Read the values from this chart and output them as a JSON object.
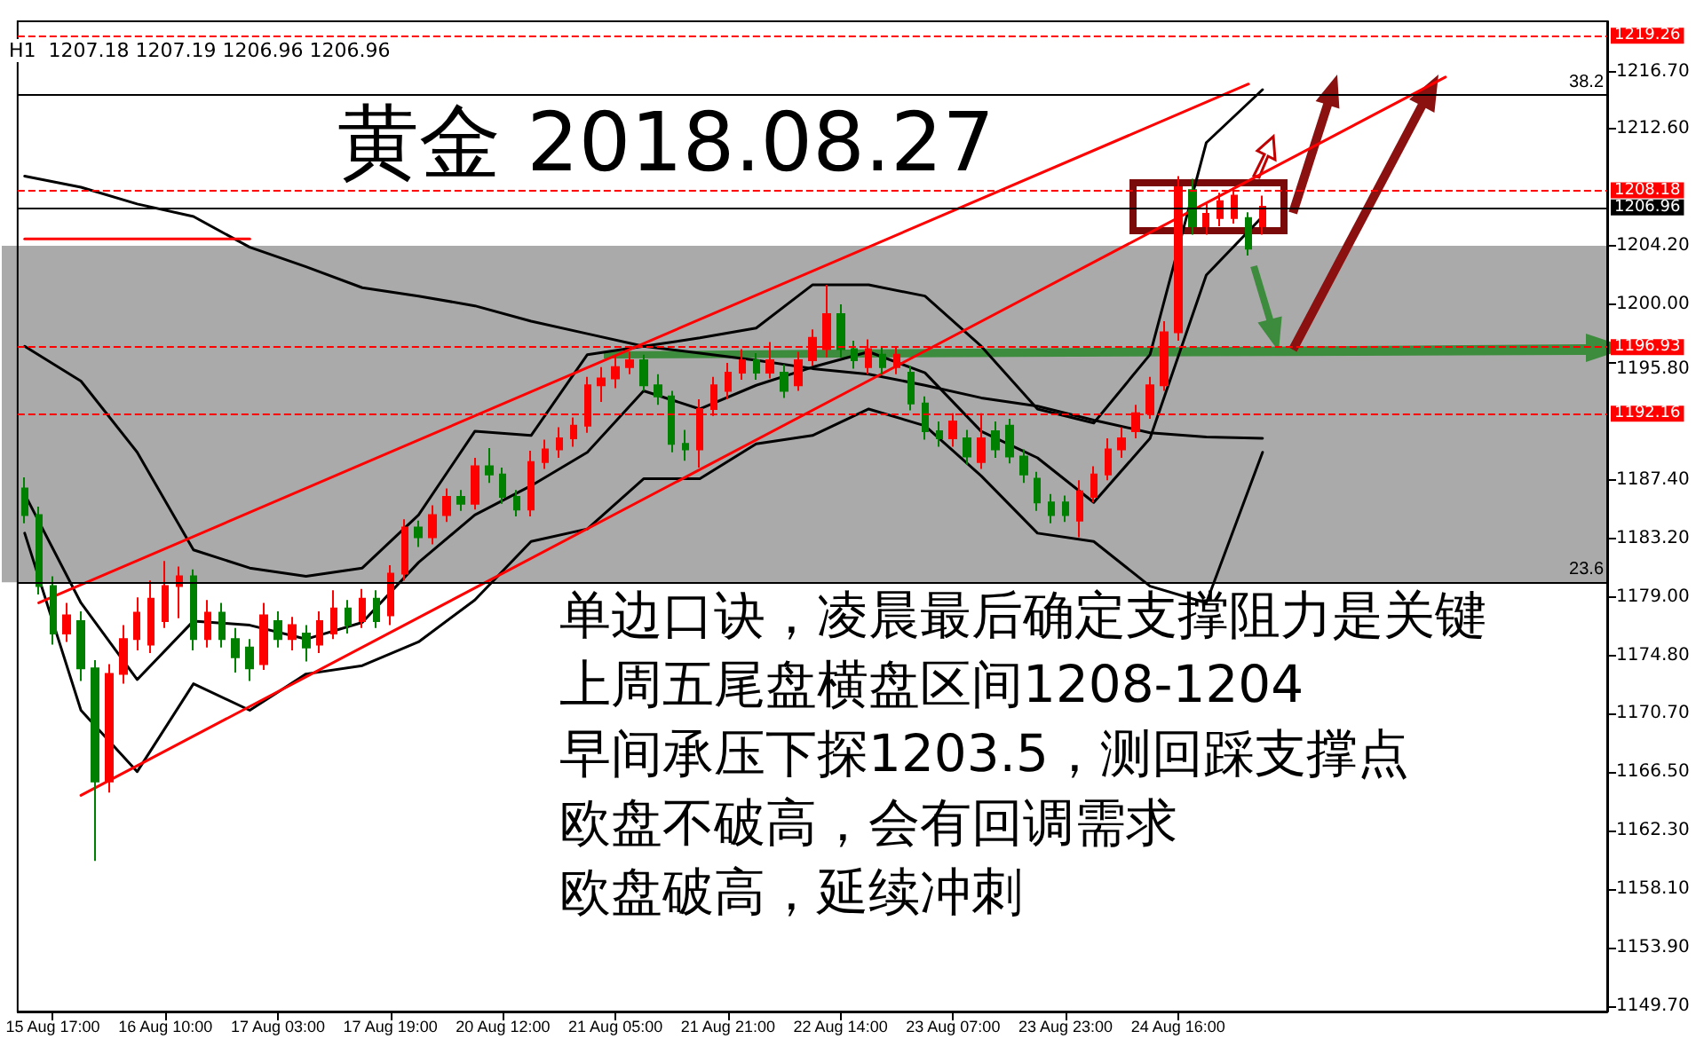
{
  "chart_data": {
    "type": "candlestick",
    "title": "黄金 2018.08.27",
    "annotations": [
      "H1  1207.18 1207.19 1206.96 1206.96",
      "单边口诀，凌晨最后确定支撑阻力是关键",
      "上周五尾盘横盘区间1208-1204",
      "早间承压下探1203.5，测回踩支撑点",
      "欧盘不破高，会有回调需求",
      "欧盘破高，延续冲刺",
      {
        "text": "38.2",
        "y": 1215.05
      },
      {
        "text": "23.6",
        "y": 1180.08
      }
    ],
    "categories": [
      null,
      null,
      "15 Aug 17:00",
      null,
      null,
      null,
      null,
      null,
      null,
      null,
      "16 Aug 10:00",
      null,
      null,
      null,
      null,
      null,
      null,
      null,
      "17 Aug 03:00",
      null,
      null,
      null,
      null,
      null,
      null,
      null,
      "17 Aug 19:00",
      null,
      null,
      null,
      null,
      null,
      null,
      null,
      "20 Aug 12:00",
      null,
      null,
      null,
      null,
      null,
      null,
      null,
      "21 Aug 05:00",
      null,
      null,
      null,
      null,
      null,
      null,
      null,
      "21 Aug 21:00",
      null,
      null,
      null,
      null,
      null,
      null,
      null,
      "22 Aug 14:00",
      null,
      null,
      null,
      null,
      null,
      null,
      null,
      "23 Aug 07:00",
      null,
      null,
      null,
      null,
      null,
      null,
      null,
      "23 Aug 23:00",
      null,
      null,
      null,
      null,
      null,
      null,
      null,
      "24 Aug 16:00",
      null,
      null,
      null,
      null,
      null,
      null,
      null,
      null,
      null,
      null,
      null,
      null,
      null,
      null,
      null,
      null,
      null,
      null,
      null,
      null,
      null,
      null,
      null,
      null,
      null,
      null,
      null,
      null,
      null,
      null
    ],
    "ohlc": [
      [
        1186.8,
        1187.6,
        1184.3,
        1184.9
      ],
      [
        1184.9,
        1185.5,
        1179.2,
        1179.8
      ],
      [
        1179.8,
        1180.5,
        1175.6,
        1176.4
      ],
      [
        1176.4,
        1178.6,
        1175.8,
        1177.7
      ],
      [
        1177.3,
        1178.0,
        1173.0,
        1173.9
      ],
      [
        1173.9,
        1174.5,
        1160.1,
        1165.8
      ],
      [
        1165.8,
        1174.2,
        1165.0,
        1173.5
      ],
      [
        1173.5,
        1177.0,
        1172.8,
        1176.0
      ],
      [
        1176.0,
        1179.0,
        1175.2,
        1177.9
      ],
      [
        1175.6,
        1180.2,
        1175.0,
        1178.9
      ],
      [
        1177.3,
        1181.6,
        1176.8,
        1179.8
      ],
      [
        1179.8,
        1181.2,
        1177.5,
        1180.5
      ],
      [
        1180.5,
        1181.0,
        1175.2,
        1176.0
      ],
      [
        1176.0,
        1178.8,
        1175.4,
        1177.9
      ],
      [
        1177.9,
        1178.6,
        1175.4,
        1176.0
      ],
      [
        1176.0,
        1176.8,
        1173.6,
        1174.7
      ],
      [
        1175.4,
        1176.0,
        1173.0,
        1173.9
      ],
      [
        1174.2,
        1178.6,
        1173.8,
        1177.7
      ],
      [
        1177.3,
        1178.0,
        1175.4,
        1176.0
      ],
      [
        1176.0,
        1177.6,
        1175.2,
        1177.0
      ],
      [
        1176.4,
        1177.0,
        1174.4,
        1175.4
      ],
      [
        1175.6,
        1178.0,
        1175.0,
        1177.3
      ],
      [
        1176.4,
        1179.5,
        1176.0,
        1178.2
      ],
      [
        1178.2,
        1178.8,
        1176.4,
        1177.0
      ],
      [
        1177.3,
        1179.6,
        1176.8,
        1178.9
      ],
      [
        1178.9,
        1179.5,
        1176.8,
        1177.3
      ],
      [
        1177.7,
        1181.3,
        1177.0,
        1180.7
      ],
      [
        1180.7,
        1184.6,
        1180.2,
        1184.0
      ],
      [
        1184.0,
        1184.5,
        1182.6,
        1183.3
      ],
      [
        1183.3,
        1185.6,
        1182.8,
        1184.9
      ],
      [
        1184.9,
        1186.8,
        1184.4,
        1186.2
      ],
      [
        1186.2,
        1186.7,
        1185.2,
        1185.7
      ],
      [
        1185.7,
        1189.0,
        1185.3,
        1188.4
      ],
      [
        1188.4,
        1189.7,
        1187.2,
        1187.8
      ],
      [
        1187.8,
        1188.3,
        1185.7,
        1186.2
      ],
      [
        1186.2,
        1186.7,
        1184.8,
        1185.3
      ],
      [
        1185.3,
        1189.5,
        1184.8,
        1188.7
      ],
      [
        1188.7,
        1190.3,
        1188.2,
        1189.6
      ],
      [
        1189.6,
        1191.2,
        1189.0,
        1190.4
      ],
      [
        1190.4,
        1191.9,
        1189.8,
        1191.3
      ],
      [
        1191.3,
        1194.8,
        1190.8,
        1194.2
      ],
      [
        1194.2,
        1195.5,
        1193.0,
        1194.7
      ],
      [
        1194.7,
        1196.3,
        1194.0,
        1195.5
      ],
      [
        1195.5,
        1196.6,
        1195.0,
        1196.0
      ],
      [
        1196.0,
        1196.4,
        1193.8,
        1194.2
      ],
      [
        1194.2,
        1195.0,
        1192.8,
        1193.4
      ],
      [
        1193.4,
        1193.8,
        1189.4,
        1190.0
      ],
      [
        1190.0,
        1191.0,
        1188.8,
        1189.6
      ],
      [
        1189.6,
        1193.2,
        1188.3,
        1192.5
      ],
      [
        1192.5,
        1194.8,
        1192.0,
        1194.2
      ],
      [
        1193.8,
        1195.8,
        1193.2,
        1195.1
      ],
      [
        1195.1,
        1196.8,
        1194.6,
        1196.0
      ],
      [
        1196.0,
        1196.5,
        1194.6,
        1195.1
      ],
      [
        1195.1,
        1197.3,
        1194.7,
        1196.0
      ],
      [
        1195.1,
        1195.7,
        1193.3,
        1193.8
      ],
      [
        1194.2,
        1196.6,
        1193.8,
        1196.0
      ],
      [
        1196.0,
        1198.2,
        1195.6,
        1197.6
      ],
      [
        1196.8,
        1201.4,
        1196.2,
        1199.3
      ],
      [
        1199.3,
        1200.0,
        1196.2,
        1196.8
      ],
      [
        1196.8,
        1197.4,
        1195.4,
        1196.0
      ],
      [
        1195.5,
        1197.5,
        1195.0,
        1196.8
      ],
      [
        1196.4,
        1197.0,
        1195.0,
        1195.5
      ],
      [
        1195.5,
        1197.0,
        1195.0,
        1196.4
      ],
      [
        1195.1,
        1195.6,
        1192.4,
        1192.9
      ],
      [
        1192.9,
        1193.4,
        1190.3,
        1190.9
      ],
      [
        1190.9,
        1191.6,
        1189.8,
        1190.4
      ],
      [
        1190.4,
        1192.2,
        1189.8,
        1191.6
      ],
      [
        1190.4,
        1191.0,
        1188.5,
        1189.1
      ],
      [
        1188.7,
        1192.2,
        1188.2,
        1190.4
      ],
      [
        1190.9,
        1191.6,
        1189.0,
        1189.6
      ],
      [
        1191.3,
        1191.8,
        1188.6,
        1189.1
      ],
      [
        1189.1,
        1189.6,
        1187.2,
        1187.8
      ],
      [
        1187.5,
        1188.0,
        1185.2,
        1185.8
      ],
      [
        1185.8,
        1186.4,
        1184.3,
        1184.9
      ],
      [
        1185.8,
        1186.3,
        1184.4,
        1184.9
      ],
      [
        1184.5,
        1187.4,
        1183.3,
        1186.6
      ],
      [
        1186.2,
        1188.4,
        1185.8,
        1187.8
      ],
      [
        1187.8,
        1190.4,
        1187.4,
        1189.6
      ],
      [
        1189.6,
        1191.2,
        1189.0,
        1190.4
      ],
      [
        1190.9,
        1192.8,
        1190.4,
        1192.2
      ],
      [
        1192.2,
        1194.8,
        1191.8,
        1194.2
      ],
      [
        1194.2,
        1198.8,
        1193.8,
        1198.0
      ],
      [
        1198.0,
        1209.2,
        1197.4,
        1208.4
      ],
      [
        1208.2,
        1209.0,
        1205.0,
        1205.6
      ],
      [
        1205.6,
        1207.2,
        1205.0,
        1206.5
      ],
      [
        1206.2,
        1208.0,
        1205.6,
        1207.4
      ],
      [
        1206.2,
        1208.4,
        1205.8,
        1207.8
      ],
      [
        1206.2,
        1206.6,
        1203.5,
        1204.0
      ],
      [
        1205.6,
        1207.8,
        1205.0,
        1207.0
      ],
      null,
      null,
      null,
      null,
      null,
      null,
      null,
      null,
      null,
      null,
      null,
      null,
      null,
      null,
      null,
      null,
      null,
      null,
      null,
      null,
      null,
      null,
      null,
      null
    ],
    "colors": [
      "#008000",
      "#008000",
      "#008000",
      "#ff0000",
      "#008000",
      "#008000",
      "#ff0000",
      "#ff0000",
      "#ff0000",
      "#ff0000",
      "#ff0000",
      "#ff0000",
      "#008000",
      "#ff0000",
      "#008000",
      "#008000",
      "#008000",
      "#ff0000",
      "#008000",
      "#ff0000",
      "#008000",
      "#ff0000",
      "#ff0000",
      "#008000",
      "#ff0000",
      "#008000",
      "#ff0000",
      "#ff0000",
      "#008000",
      "#ff0000",
      "#ff0000",
      "#008000",
      "#ff0000",
      "#008000",
      "#008000",
      "#008000",
      "#ff0000",
      "#ff0000",
      "#ff0000",
      "#ff0000",
      "#ff0000",
      "#ff0000",
      "#ff0000",
      "#ff0000",
      "#008000",
      "#008000",
      "#008000",
      "#008000",
      "#ff0000",
      "#ff0000",
      "#ff0000",
      "#ff0000",
      "#008000",
      "#ff0000",
      "#008000",
      "#ff0000",
      "#ff0000",
      "#ff0000",
      "#008000",
      "#008000",
      "#ff0000",
      "#008000",
      "#ff0000",
      "#008000",
      "#008000",
      "#008000",
      "#ff0000",
      "#008000",
      "#ff0000",
      "#008000",
      "#008000",
      "#008000",
      "#008000",
      "#008000",
      "#008000",
      "#ff0000",
      "#ff0000",
      "#ff0000",
      "#ff0000",
      "#ff0000",
      "#ff0000",
      "#ff0000",
      "#ff0000",
      "#008000",
      "#ff0000",
      "#ff0000",
      "#ff0000",
      "#008000",
      "#ff0000",
      null,
      null,
      null,
      null,
      null,
      null,
      null,
      null,
      null,
      null,
      null,
      null,
      null,
      null,
      null,
      null,
      null,
      null,
      null,
      null,
      null,
      null,
      null,
      null
    ],
    "series": [
      {
        "type": "line",
        "color": "#000000",
        "values": [
          1186.4,
          null,
          null,
          null,
          1178.6,
          null,
          null,
          null,
          1173.1,
          null,
          null,
          null,
          1177.3,
          null,
          null,
          null,
          1177.0,
          null,
          null,
          null,
          1176.0,
          null,
          null,
          null,
          1177.2,
          null,
          null,
          null,
          1181.5,
          null,
          null,
          null,
          1184.9,
          null,
          null,
          null,
          1187.0,
          null,
          null,
          null,
          1189.4,
          null,
          null,
          null,
          1193.8,
          null,
          null,
          null,
          1192.5,
          null,
          null,
          null,
          1194.2,
          null,
          null,
          null,
          1195.5,
          null,
          null,
          null,
          1196.6,
          null,
          null,
          null,
          1195.1,
          null,
          null,
          null,
          1190.9,
          null,
          null,
          null,
          1189.0,
          null,
          null,
          null,
          1185.8,
          null,
          null,
          null,
          1190.4,
          null,
          null,
          null,
          1202.1,
          null,
          null,
          null,
          1206.3,
          null,
          null,
          null,
          null,
          null,
          null,
          null,
          null,
          null,
          null,
          null,
          null,
          null,
          null,
          null,
          null,
          null,
          null,
          null,
          null,
          null,
          null,
          null,
          null
        ]
      },
      {
        "type": "line",
        "color": "#000000",
        "values": [
          1209.2,
          null,
          null,
          null,
          1208.4,
          null,
          null,
          null,
          1207.2,
          null,
          null,
          null,
          1206.3,
          null,
          null,
          null,
          1204.1,
          null,
          null,
          null,
          1202.7,
          null,
          null,
          null,
          1201.2,
          null,
          null,
          null,
          1200.6,
          null,
          null,
          null,
          1199.9,
          null,
          null,
          null,
          1198.8,
          null,
          null,
          null,
          1197.9,
          null,
          null,
          null,
          1197.0,
          null,
          null,
          null,
          1196.5,
          null,
          null,
          null,
          1196.0,
          null,
          null,
          null,
          1195.4,
          null,
          null,
          null,
          1195.0,
          null,
          null,
          null,
          1194.2,
          null,
          null,
          null,
          1193.3,
          null,
          null,
          null,
          1192.7,
          null,
          null,
          null,
          1191.7,
          null,
          null,
          null,
          1190.8,
          null,
          null,
          null,
          1190.5,
          null,
          null,
          null,
          1190.4,
          null,
          null,
          null,
          null,
          null,
          null,
          null,
          null,
          null,
          null,
          null,
          null,
          null,
          null,
          null,
          null,
          null,
          null,
          null,
          null,
          null,
          null,
          null,
          null
        ]
      },
      {
        "type": "line",
        "color": "#000000",
        "values": [
          1197.0,
          null,
          null,
          null,
          1194.5,
          null,
          null,
          null,
          1189.4,
          null,
          null,
          null,
          1182.4,
          null,
          null,
          null,
          1181.1,
          null,
          null,
          null,
          1180.5,
          null,
          null,
          null,
          1181.1,
          null,
          null,
          null,
          1184.9,
          null,
          null,
          null,
          1190.9,
          null,
          null,
          null,
          1190.6,
          null,
          null,
          null,
          1196.4,
          null,
          null,
          null,
          1197.0,
          null,
          null,
          null,
          1197.6,
          null,
          null,
          null,
          1198.3,
          null,
          null,
          null,
          1201.4,
          null,
          null,
          null,
          1201.4,
          null,
          null,
          null,
          1200.6,
          null,
          null,
          null,
          1197.0,
          null,
          null,
          null,
          1192.5,
          null,
          null,
          null,
          1191.5,
          null,
          null,
          null,
          1196.4,
          null,
          null,
          null,
          1211.6,
          null,
          null,
          null,
          1215.4,
          null,
          null,
          null,
          null,
          null,
          null,
          null,
          null,
          null,
          null,
          null,
          null,
          null,
          null,
          null,
          null,
          null,
          null,
          null,
          null,
          null,
          null,
          null,
          null
        ]
      },
      {
        "type": "line",
        "color": "#000000",
        "values": [
          1183.6,
          null,
          null,
          null,
          1170.9,
          null,
          null,
          null,
          1166.5,
          null,
          null,
          null,
          1172.8,
          null,
          null,
          null,
          1170.9,
          null,
          null,
          null,
          1173.5,
          null,
          null,
          null,
          1174.1,
          null,
          null,
          null,
          1175.8,
          null,
          null,
          null,
          1178.8,
          null,
          null,
          null,
          1183.0,
          null,
          null,
          null,
          1183.9,
          null,
          null,
          null,
          1187.5,
          null,
          null,
          null,
          1187.5,
          null,
          null,
          null,
          1190.0,
          null,
          null,
          null,
          1190.6,
          null,
          null,
          null,
          1192.5,
          null,
          null,
          null,
          1191.3,
          null,
          null,
          null,
          1187.7,
          null,
          null,
          null,
          1183.6,
          null,
          null,
          null,
          1183.0,
          null,
          null,
          null,
          1179.8,
          null,
          null,
          null,
          1178.6,
          null,
          null,
          null,
          1189.4,
          null,
          null,
          null,
          null,
          null,
          null,
          null,
          null,
          null,
          null,
          null,
          null,
          null,
          null,
          null,
          null,
          null,
          null,
          null,
          null,
          null,
          null,
          null,
          null
        ]
      },
      {
        "type": "line",
        "color": "#ff0000",
        "values": [
          null,
          1178.6,
          null,
          null,
          null,
          null,
          null,
          null,
          null,
          null,
          null,
          null,
          null,
          null,
          null,
          null,
          null,
          null,
          null,
          null,
          null,
          null,
          null,
          null,
          null,
          null,
          null,
          null,
          null,
          null,
          null,
          null,
          null,
          null,
          null,
          null,
          null,
          null,
          null,
          null,
          null,
          null,
          null,
          null,
          null,
          null,
          null,
          null,
          null,
          null,
          null,
          null,
          null,
          null,
          null,
          null,
          null,
          null,
          null,
          null,
          null,
          null,
          null,
          null,
          null,
          null,
          null,
          null,
          null,
          null,
          null,
          null,
          null,
          null,
          null,
          null,
          null,
          null,
          null,
          null,
          null,
          null,
          null,
          null,
          null,
          null,
          null,
          1215.8,
          null,
          null,
          null,
          null,
          null,
          null,
          null,
          null,
          null,
          null,
          null,
          null,
          null,
          null,
          null,
          null,
          null,
          null,
          null,
          null,
          null,
          null,
          null,
          null,
          null
        ]
      },
      {
        "type": "line",
        "color": "#ff0000",
        "values": [
          null,
          null,
          null,
          null,
          1164.8,
          null,
          null,
          null,
          null,
          null,
          null,
          null,
          null,
          null,
          null,
          null,
          null,
          null,
          null,
          null,
          null,
          null,
          null,
          null,
          null,
          null,
          null,
          null,
          null,
          null,
          null,
          null,
          null,
          null,
          null,
          null,
          null,
          null,
          null,
          null,
          null,
          null,
          null,
          null,
          null,
          null,
          null,
          null,
          null,
          null,
          null,
          null,
          null,
          null,
          null,
          null,
          null,
          null,
          null,
          null,
          null,
          null,
          null,
          null,
          null,
          null,
          null,
          null,
          null,
          null,
          null,
          null,
          null,
          null,
          null,
          null,
          null,
          null,
          null,
          null,
          null,
          null,
          null,
          null,
          null,
          null,
          null,
          null,
          null,
          null,
          null,
          null,
          null,
          null,
          null,
          null,
          null,
          null,
          null,
          null,
          null,
          1216.3,
          null,
          null,
          null,
          null,
          null,
          null,
          null,
          null,
          null,
          null,
          null
        ]
      },
      {
        "type": "line",
        "color": "#ff0000",
        "values": [
          1204.7,
          null,
          null,
          null,
          null,
          null,
          null,
          null,
          null,
          null,
          null,
          null,
          null,
          null,
          null,
          null,
          1204.7,
          null,
          null,
          null,
          null,
          null,
          null,
          null,
          null,
          null,
          null,
          null,
          null,
          null,
          null,
          null,
          null,
          null,
          null,
          null,
          null,
          null,
          null,
          null,
          null,
          null,
          null,
          null,
          null,
          null,
          null,
          null,
          null,
          null,
          null,
          null,
          null,
          null,
          null,
          null,
          null,
          null,
          null,
          null,
          null,
          null,
          null,
          null,
          null,
          null,
          null,
          null,
          null,
          null,
          null,
          null,
          null,
          null,
          null,
          null,
          null,
          null,
          null,
          null,
          null,
          null,
          null,
          null,
          null,
          null,
          null,
          null,
          null,
          null,
          null,
          null,
          null,
          null,
          null,
          null,
          null,
          null,
          null,
          null,
          null,
          null,
          null,
          null,
          null,
          null,
          null,
          null,
          null,
          null,
          null,
          null,
          null
        ]
      }
    ],
    "ylim": [
      1149.3,
      1220.3
    ],
    "yticks": [
      {
        "value": 1149.7,
        "label": "1149.70"
      },
      {
        "value": 1153.9,
        "label": "1153.90"
      },
      {
        "value": 1158.1,
        "label": "1158.10"
      },
      {
        "value": 1162.3,
        "label": "1162.30"
      },
      {
        "value": 1166.5,
        "label": "1166.50"
      },
      {
        "value": 1170.7,
        "label": "1170.70"
      },
      {
        "value": 1174.8,
        "label": "1174.80"
      },
      {
        "value": 1179.0,
        "label": "1179.00"
      },
      {
        "value": 1183.2,
        "label": "1183.20"
      },
      {
        "value": 1187.4,
        "label": "1187.40"
      },
      {
        "value": 1195.8,
        "label": "1195.80"
      },
      {
        "value": 1200.0,
        "label": "1200.00"
      },
      {
        "value": 1204.2,
        "label": "1204.20"
      },
      {
        "value": 1212.6,
        "label": "1212.60"
      },
      {
        "value": 1216.7,
        "label": "1216.70"
      }
    ],
    "ref_lines": [
      {
        "axis": "y",
        "value": 1219.26,
        "label": "1219.26",
        "color": "#ff0000",
        "line_style": "dashed"
      },
      {
        "axis": "y",
        "value": 1208.18,
        "label": "1208.18",
        "color": "#ff0000",
        "line_style": "dashed"
      },
      {
        "axis": "y",
        "value": 1206.96,
        "label": "1206.96",
        "color": "#000000",
        "line_style": "solid"
      },
      {
        "axis": "y",
        "value": 1196.93,
        "label": "1196.93",
        "color": "#ff0000",
        "line_style": "dashed"
      },
      {
        "axis": "y",
        "value": 1192.16,
        "label": "1192.16",
        "color": "#ff0000",
        "line_style": "dashed"
      },
      {
        "axis": "y",
        "value": 1215.05,
        "color": "#000000",
        "line_style": "solid"
      },
      {
        "axis": "y",
        "value": 1180.08,
        "color": "#000000",
        "line_style": "solid"
      }
    ],
    "bands": [
      {
        "axis": "y",
        "from": 1180.08,
        "to": 1204.2,
        "color": "#aaaaaa"
      }
    ]
  }
}
